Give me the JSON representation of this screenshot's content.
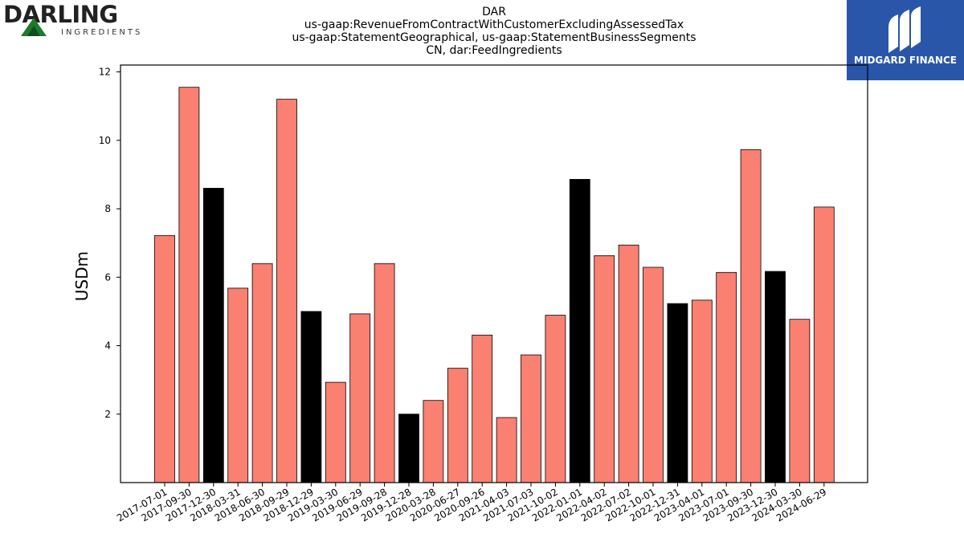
{
  "logos": {
    "left": {
      "name": "DARLING",
      "tagline": "INGREDIENTS"
    },
    "right": {
      "name": "MIDGARD FINANCE"
    }
  },
  "chart_data": {
    "type": "bar",
    "title_lines": [
      "DAR",
      "us-gaap:RevenueFromContractWithCustomerExcludingAssessedTax",
      "us-gaap:StatementGeographical, us-gaap:StatementBusinessSegments",
      "CN, dar:FeedIngredients"
    ],
    "xlabel": "",
    "ylabel": "USDm",
    "ylim": [
      0,
      12.2
    ],
    "yticks": [
      2,
      4,
      6,
      8,
      10,
      12
    ],
    "grid": false,
    "colors": {
      "quarter": "#fa8072",
      "year_end": "#000000"
    },
    "categories": [
      "2017-07-01",
      "2017-09-30",
      "2017-12-30",
      "2018-03-31",
      "2018-06-30",
      "2018-09-29",
      "2018-12-29",
      "2019-03-30",
      "2019-06-29",
      "2019-09-28",
      "2019-12-28",
      "2020-03-28",
      "2020-06-27",
      "2020-09-26",
      "2021-04-03",
      "2021-07-03",
      "2021-10-02",
      "2022-01-01",
      "2022-04-02",
      "2022-07-02",
      "2022-10-01",
      "2022-12-31",
      "2023-04-01",
      "2023-07-01",
      "2023-09-30",
      "2023-12-30",
      "2024-03-30",
      "2024-06-29"
    ],
    "values": [
      7.22,
      11.55,
      8.6,
      5.68,
      6.4,
      11.2,
      5.0,
      2.93,
      4.93,
      6.4,
      2.0,
      2.4,
      3.34,
      4.31,
      1.9,
      3.73,
      4.89,
      8.86,
      6.63,
      6.94,
      6.29,
      5.23,
      5.33,
      6.14,
      9.73,
      6.17,
      4.77,
      8.05
    ],
    "highlight": [
      false,
      false,
      true,
      false,
      false,
      false,
      true,
      false,
      false,
      false,
      true,
      false,
      false,
      false,
      false,
      false,
      false,
      true,
      false,
      false,
      false,
      true,
      false,
      false,
      false,
      true,
      false,
      false
    ]
  }
}
